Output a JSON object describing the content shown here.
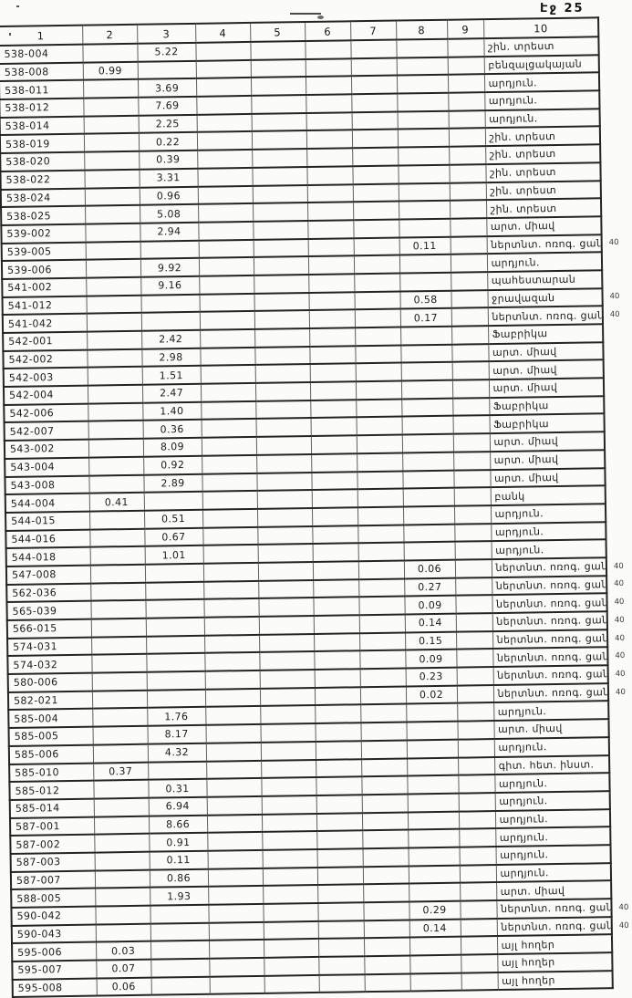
{
  "page": {
    "page_label": "Էջ 25"
  },
  "table": {
    "headers": [
      "1",
      "2",
      "3",
      "4",
      "5",
      "6",
      "7",
      "8",
      "9",
      "10"
    ],
    "margin_note": "40",
    "rows": [
      {
        "id": "538-004",
        "c3": "5.22",
        "c10": "շին. տրեստ"
      },
      {
        "id": "538-008",
        "c2": "0.99",
        "c10": "բենզալցակայան"
      },
      {
        "id": "538-011",
        "c3": "3.69",
        "c10": "արդյուն."
      },
      {
        "id": "538-012",
        "c3": "7.69",
        "c10": "արդյուն."
      },
      {
        "id": "538-014",
        "c3": "2.25",
        "c10": "արդյուն."
      },
      {
        "id": "538-019",
        "c3": "0.22",
        "c10": "շին. տրեստ"
      },
      {
        "id": "538-020",
        "c3": "0.39",
        "c10": "շին. տրեստ"
      },
      {
        "id": "538-022",
        "c3": "3.31",
        "c10": "շին. տրեստ"
      },
      {
        "id": "538-024",
        "c3": "0.96",
        "c10": "շին. տրեստ"
      },
      {
        "id": "538-025",
        "c3": "5.08",
        "c10": "շին. տրեստ"
      },
      {
        "id": "539-002",
        "c3": "2.94",
        "c10": "արտ. միավ"
      },
      {
        "id": "539-005",
        "c8": "0.11",
        "c10": "ներտնտ. ոռոգ. ցանց",
        "note": "40"
      },
      {
        "id": "539-006",
        "c3": "9.92",
        "c10": "արդյուն."
      },
      {
        "id": "541-002",
        "c3": "9.16",
        "c10": "պահեստարան"
      },
      {
        "id": "541-012",
        "c8": "0.58",
        "c10": "ջրավազան",
        "note": "40"
      },
      {
        "id": "541-042",
        "c8": "0.17",
        "c10": "ներտնտ. ոռոգ. ցանց",
        "note": "40"
      },
      {
        "id": "542-001",
        "c3": "2.42",
        "c10": "Ֆաբրիկա"
      },
      {
        "id": "542-002",
        "c3": "2.98",
        "c10": "արտ. միավ"
      },
      {
        "id": "542-003",
        "c3": "1.51",
        "c10": "արտ. միավ"
      },
      {
        "id": "542-004",
        "c3": "2.47",
        "c10": "արտ. միավ"
      },
      {
        "id": "542-006",
        "c3": "1.40",
        "c10": "Ֆաբրիկա"
      },
      {
        "id": "542-007",
        "c3": "0.36",
        "c10": "Ֆաբրիկա"
      },
      {
        "id": "543-002",
        "c3": "8.09",
        "c10": "արտ. միավ"
      },
      {
        "id": "543-004",
        "c3": "0.92",
        "c10": "արտ. միավ"
      },
      {
        "id": "543-008",
        "c3": "2.89",
        "c10": "արտ. միավ"
      },
      {
        "id": "544-004",
        "c2": "0.41",
        "c10": "բանկ"
      },
      {
        "id": "544-015",
        "c3": "0.51",
        "c10": "արդյուն."
      },
      {
        "id": "544-016",
        "c3": "0.67",
        "c10": "արդյուն."
      },
      {
        "id": "544-018",
        "c3": "1.01",
        "c10": "արդյուն."
      },
      {
        "id": "547-008",
        "c8": "0.06",
        "c10": "ներտնտ. ոռոգ. ցանց",
        "note": "40"
      },
      {
        "id": "562-036",
        "c8": "0.27",
        "c10": "ներտնտ. ոռոգ. ցանց",
        "note": "40"
      },
      {
        "id": "565-039",
        "c8": "0.09",
        "c10": "ներտնտ. ոռոգ. ցանց",
        "note": "40"
      },
      {
        "id": "566-015",
        "c8": "0.14",
        "c10": "ներտնտ. ոռոգ. ցանց",
        "note": "40"
      },
      {
        "id": "574-031",
        "c8": "0.15",
        "c10": "ներտնտ. ոռոգ. ցանց",
        "note": "40"
      },
      {
        "id": "574-032",
        "c8": "0.09",
        "c10": "ներտնտ. ոռոգ. ցանց",
        "note": "40"
      },
      {
        "id": "580-006",
        "c8": "0.23",
        "c10": "ներտնտ. ոռոգ. ցանց",
        "note": "40"
      },
      {
        "id": "582-021",
        "c8": "0.02",
        "c10": "ներտնտ. ոռոգ. ցանց",
        "note": "40"
      },
      {
        "id": "585-004",
        "c3": "1.76",
        "c10": "արդյուն."
      },
      {
        "id": "585-005",
        "c3": "8.17",
        "c10": "արտ. միավ"
      },
      {
        "id": "585-006",
        "c3": "4.32",
        "c10": "արդյուն."
      },
      {
        "id": "585-010",
        "c2": "0.37",
        "c10": "գիտ. հետ. ինստ."
      },
      {
        "id": "585-012",
        "c3": "0.31",
        "c10": "արդյուն."
      },
      {
        "id": "585-014",
        "c3": "6.94",
        "c10": "արդյուն."
      },
      {
        "id": "587-001",
        "c3": "8.66",
        "c10": "արդյուն."
      },
      {
        "id": "587-002",
        "c3": "0.91",
        "c10": "արդյուն."
      },
      {
        "id": "587-003",
        "c3": "0.11",
        "c10": "արդյուն."
      },
      {
        "id": "587-007",
        "c3": "0.86",
        "c10": "արդյուն."
      },
      {
        "id": "588-005",
        "c3": "1.93",
        "c10": "արտ. միավ"
      },
      {
        "id": "590-042",
        "c8": "0.29",
        "c10": "ներտնտ. ոռոգ. ցանց",
        "note": "40"
      },
      {
        "id": "590-043",
        "c8": "0.14",
        "c10": "ներտնտ. ոռոգ. ցանց",
        "note": "40"
      },
      {
        "id": "595-006",
        "c2": "0.03",
        "c10": "այլ հողեր"
      },
      {
        "id": "595-007",
        "c2": "0.07",
        "c10": "այլ հողեր"
      },
      {
        "id": "595-008",
        "c2": "0.06",
        "c10": "այլ հողեր"
      }
    ]
  }
}
